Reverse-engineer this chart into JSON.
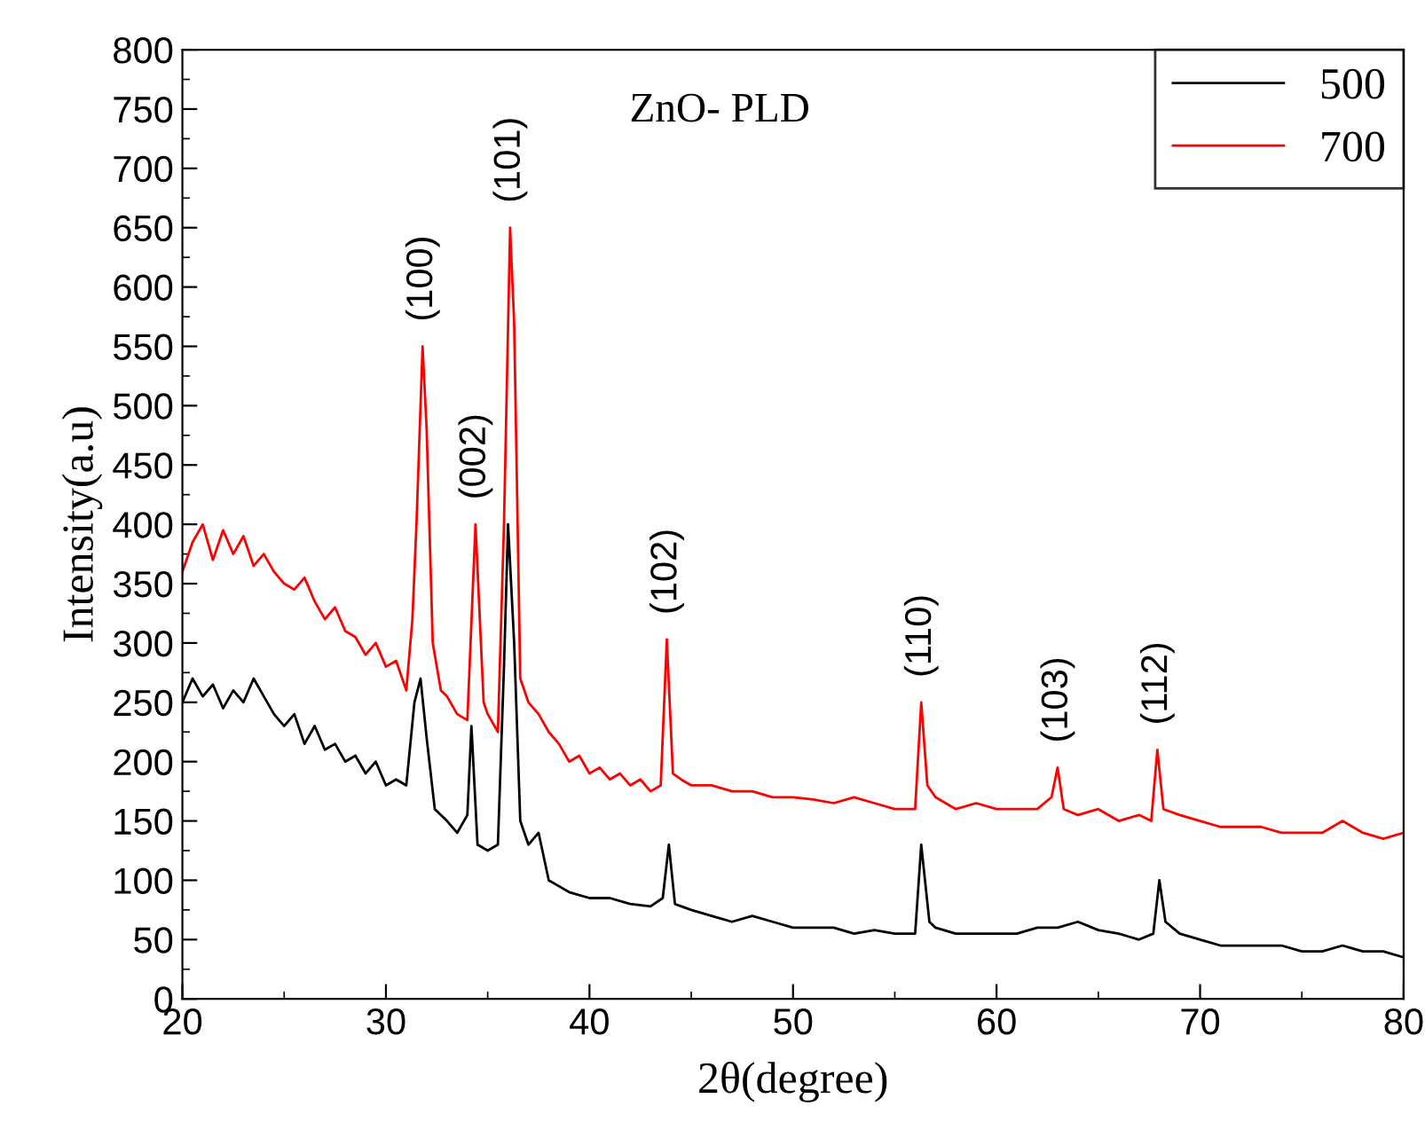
{
  "chart_data": {
    "type": "line",
    "title": "ZnO- PLD",
    "xlabel": "2θ(degree)",
    "ylabel": "Intensity(a.u)",
    "xlim": [
      20,
      80
    ],
    "xticks": [
      20,
      30,
      40,
      50,
      60,
      70,
      80
    ],
    "ylim": [
      0,
      800
    ],
    "yticks": [
      0,
      50,
      100,
      150,
      200,
      250,
      300,
      350,
      400,
      450,
      500,
      550,
      600,
      650,
      700,
      750,
      800
    ],
    "grid": false,
    "legend": "top right",
    "marker": "none",
    "line_style": "solid",
    "series": [
      {
        "name": "500",
        "color": "#000000",
        "x": [
          20,
          20.5,
          21,
          21.5,
          22,
          22.5,
          23,
          23.5,
          24,
          24.5,
          25,
          25.5,
          26,
          26.5,
          27,
          27.5,
          28,
          28.5,
          29,
          29.5,
          30,
          30.5,
          31,
          31.4,
          31.7,
          32.0,
          32.4,
          33,
          33.5,
          34,
          34.2,
          34.5,
          35,
          35.5,
          35.8,
          36.0,
          36.3,
          36.6,
          37,
          37.5,
          38,
          38.5,
          39,
          40,
          41,
          42,
          43,
          43.6,
          43.9,
          44.2,
          45,
          46,
          47,
          48,
          49,
          50,
          51,
          52,
          53,
          54,
          55,
          56,
          56.3,
          56.7,
          57,
          58,
          59,
          60,
          61,
          62,
          63,
          64,
          65,
          66,
          67,
          67.7,
          68.0,
          68.3,
          69,
          70,
          71,
          72,
          73,
          74,
          75,
          76,
          77,
          78,
          79,
          80
        ],
        "values": [
          250,
          270,
          255,
          265,
          245,
          260,
          250,
          270,
          255,
          240,
          230,
          240,
          215,
          230,
          210,
          215,
          200,
          205,
          190,
          200,
          180,
          185,
          180,
          250,
          270,
          220,
          160,
          150,
          140,
          155,
          230,
          130,
          125,
          130,
          280,
          400,
          300,
          150,
          130,
          140,
          100,
          95,
          90,
          85,
          85,
          80,
          78,
          85,
          130,
          80,
          75,
          70,
          65,
          70,
          65,
          60,
          60,
          60,
          55,
          58,
          55,
          55,
          130,
          65,
          60,
          55,
          55,
          55,
          55,
          60,
          60,
          65,
          58,
          55,
          50,
          55,
          100,
          65,
          55,
          50,
          45,
          45,
          45,
          45,
          40,
          40,
          45,
          40,
          40,
          35
        ]
      },
      {
        "name": "700",
        "color": "#ff0000",
        "x": [
          20,
          20.5,
          21,
          21.5,
          22,
          22.5,
          23,
          23.5,
          24,
          24.5,
          25,
          25.5,
          26,
          26.5,
          27,
          27.5,
          28,
          28.5,
          29,
          29.5,
          30,
          30.5,
          31,
          31.3,
          31.5,
          31.8,
          32.0,
          32.3,
          32.7,
          33,
          33.5,
          34,
          34.4,
          34.8,
          35,
          35.5,
          35.8,
          36.1,
          36.3,
          36.6,
          37,
          37.5,
          38,
          38.5,
          39,
          39.5,
          40,
          40.5,
          41,
          41.5,
          42,
          42.5,
          43,
          43.5,
          43.8,
          44.1,
          44.5,
          45,
          46,
          47,
          48,
          49,
          50,
          51,
          52,
          53,
          54,
          55,
          56,
          56.3,
          56.6,
          57,
          58,
          59,
          60,
          61,
          62,
          62.7,
          63.0,
          63.3,
          64,
          65,
          66,
          67,
          67.6,
          67.9,
          68.2,
          69,
          70,
          71,
          72,
          73,
          74,
          75,
          76,
          77,
          78,
          79,
          80
        ],
        "values": [
          360,
          385,
          400,
          370,
          395,
          375,
          390,
          365,
          375,
          360,
          350,
          345,
          355,
          335,
          320,
          330,
          310,
          305,
          290,
          300,
          280,
          285,
          260,
          320,
          400,
          550,
          480,
          300,
          260,
          255,
          240,
          235,
          400,
          250,
          240,
          225,
          400,
          650,
          570,
          270,
          250,
          240,
          225,
          215,
          200,
          205,
          190,
          195,
          185,
          190,
          180,
          185,
          175,
          180,
          303,
          190,
          185,
          180,
          180,
          175,
          175,
          170,
          170,
          168,
          165,
          170,
          165,
          160,
          160,
          250,
          180,
          170,
          160,
          165,
          160,
          160,
          160,
          170,
          195,
          160,
          155,
          160,
          150,
          155,
          150,
          210,
          160,
          155,
          150,
          145,
          145,
          145,
          140,
          140,
          140,
          150,
          140,
          135,
          140
        ]
      }
    ],
    "annotations": [
      {
        "text": "(100)",
        "x": 31.8,
        "y": 550
      },
      {
        "text": "(002)",
        "x": 34.4,
        "y": 400
      },
      {
        "text": "(101)",
        "x": 36.1,
        "y": 650
      },
      {
        "text": "(102)",
        "x": 43.8,
        "y": 303
      },
      {
        "text": "(110)",
        "x": 56.3,
        "y": 250
      },
      {
        "text": "(103)",
        "x": 63.0,
        "y": 195
      },
      {
        "text": "(112)",
        "x": 67.9,
        "y": 210
      }
    ]
  }
}
